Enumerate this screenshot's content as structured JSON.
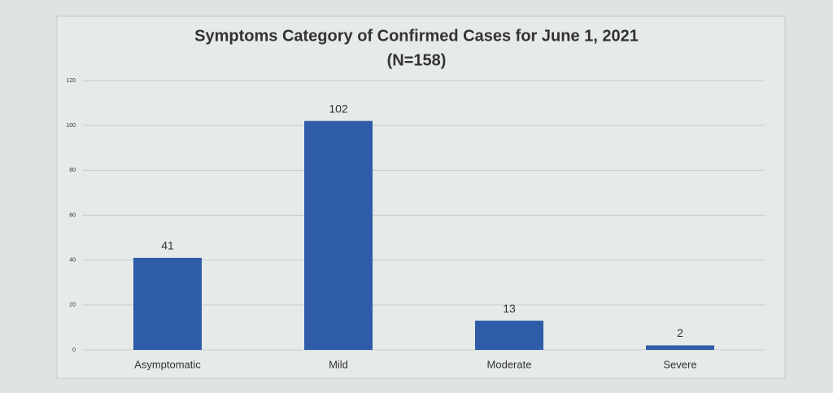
{
  "chart_data": {
    "type": "bar",
    "title": "Symptoms Category of Confirmed Cases for June 1, 2021",
    "subtitle": "(N=158)",
    "categories": [
      "Asymptomatic",
      "Mild",
      "Moderate",
      "Severe"
    ],
    "values": [
      41,
      102,
      13,
      2
    ],
    "color": "#2e5ca8",
    "ylim": [
      0,
      120
    ],
    "yticks": [
      0,
      20,
      40,
      60,
      80,
      100,
      120
    ],
    "grid": true
  }
}
